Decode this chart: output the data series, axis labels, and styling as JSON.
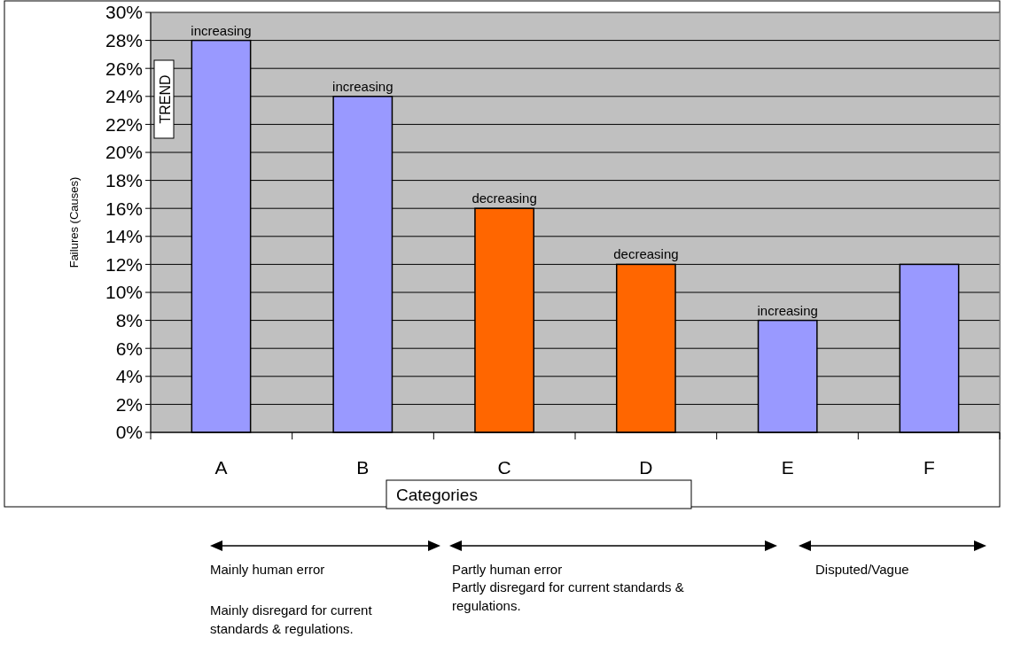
{
  "chart_data": {
    "type": "bar",
    "xlabel": "Categories",
    "ylabel": "Failures (Causes)",
    "categories": [
      "A",
      "B",
      "C",
      "D",
      "E",
      "F"
    ],
    "values": [
      28,
      24,
      16,
      12,
      8,
      12
    ],
    "colors": [
      "#9999ff",
      "#9999ff",
      "#ff6600",
      "#ff6600",
      "#9999ff",
      "#9999ff"
    ],
    "ylim": [
      0,
      30
    ],
    "yticks": [
      {
        "value": 0,
        "label": "0%"
      },
      {
        "value": 2,
        "label": "2%"
      },
      {
        "value": 4,
        "label": "4%"
      },
      {
        "value": 6,
        "label": "6%"
      },
      {
        "value": 8,
        "label": "8%"
      },
      {
        "value": 10,
        "label": "10%"
      },
      {
        "value": 12,
        "label": "12%"
      },
      {
        "value": 14,
        "label": "14%"
      },
      {
        "value": 16,
        "label": "16%"
      },
      {
        "value": 18,
        "label": "18%"
      },
      {
        "value": 20,
        "label": "20%"
      },
      {
        "value": 22,
        "label": "22%"
      },
      {
        "value": 24,
        "label": "24%"
      },
      {
        "value": 26,
        "label": "26%"
      },
      {
        "value": 28,
        "label": "28%"
      },
      {
        "value": 30,
        "label": "30%"
      }
    ],
    "grid": "y",
    "annotations": [
      {
        "text": "increasing",
        "x": "A",
        "y": 28
      },
      {
        "text": "increasing",
        "x": "B",
        "y": 24
      },
      {
        "text": "decreasing",
        "x": "C",
        "y": 16
      },
      {
        "text": "decreasing",
        "x": "D",
        "y": 12
      },
      {
        "text": "increasing",
        "x": "E",
        "y": 8
      },
      "TREND",
      "Mainly human error",
      "Mainly disregard for current standards & regulations.",
      "Partly human error",
      "Partly disregard for current standards & regulations.",
      "Disputed/Vague"
    ]
  }
}
